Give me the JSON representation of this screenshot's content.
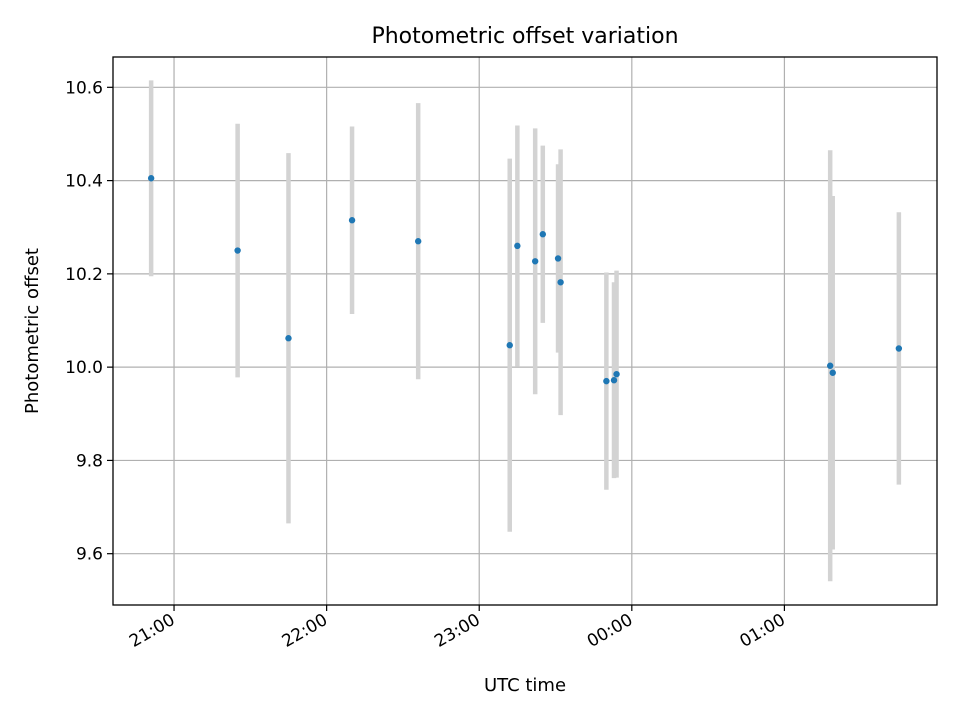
{
  "chart_data": {
    "type": "scatter",
    "title": "Photometric offset variation",
    "xlabel": "UTC time",
    "ylabel": "Photometric offset",
    "xlim": [
      "20:36",
      "02:00"
    ],
    "ylim": [
      9.49,
      10.665
    ],
    "x_ticks": [
      "21:00",
      "22:00",
      "23:00",
      "00:00",
      "01:00"
    ],
    "y_ticks": [
      9.6,
      9.8,
      10.0,
      10.2,
      10.4,
      10.6
    ],
    "grid": true,
    "colors": {
      "marker": "#1f77b4",
      "errorbar": "#d3d3d3",
      "grid": "#b0b0b0"
    },
    "points": [
      {
        "time": "20:51",
        "y": 10.405,
        "yerr": 0.21
      },
      {
        "time": "21:25",
        "y": 10.25,
        "yerr": 0.272
      },
      {
        "time": "21:45",
        "y": 10.062,
        "yerr": 0.397
      },
      {
        "time": "22:10",
        "y": 10.315,
        "yerr": 0.201
      },
      {
        "time": "22:36",
        "y": 10.27,
        "yerr": 0.296
      },
      {
        "time": "23:12",
        "y": 10.047,
        "yerr": 0.4
      },
      {
        "time": "23:15",
        "y": 10.26,
        "yerr": 0.258
      },
      {
        "time": "23:22",
        "y": 10.227,
        "yerr": 0.285
      },
      {
        "time": "23:25",
        "y": 10.285,
        "yerr": 0.19
      },
      {
        "time": "23:31",
        "y": 10.233,
        "yerr": 0.202
      },
      {
        "time": "23:32",
        "y": 10.182,
        "yerr": 0.285
      },
      {
        "time": "23:50",
        "y": 9.97,
        "yerr": 0.233
      },
      {
        "time": "23:53",
        "y": 9.972,
        "yerr": 0.21
      },
      {
        "time": "23:54",
        "y": 9.985,
        "yerr": 0.222
      },
      {
        "time": "01:18",
        "y": 10.003,
        "yerr": 0.462
      },
      {
        "time": "01:19",
        "y": 9.988,
        "yerr": 0.379
      },
      {
        "time": "01:45",
        "y": 10.04,
        "yerr": 0.292
      }
    ]
  }
}
